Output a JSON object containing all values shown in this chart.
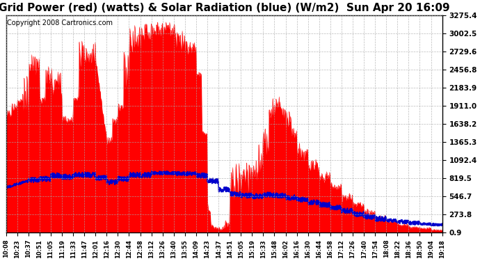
{
  "title": "Grid Power (red) (watts) & Solar Radiation (blue) (W/m2)  Sun Apr 20 16:09",
  "copyright": "Copyright 2008 Cartronics.com",
  "yticks": [
    0.9,
    273.8,
    546.7,
    819.5,
    1092.4,
    1365.3,
    1638.2,
    1911.0,
    2183.9,
    2456.8,
    2729.6,
    3002.5,
    3275.4
  ],
  "xtick_labels": [
    "10:08",
    "10:23",
    "10:37",
    "10:51",
    "11:05",
    "11:19",
    "11:33",
    "11:47",
    "12:01",
    "12:16",
    "12:30",
    "12:44",
    "12:58",
    "13:12",
    "13:26",
    "13:40",
    "13:55",
    "14:09",
    "14:23",
    "14:37",
    "14:51",
    "15:05",
    "15:19",
    "15:33",
    "15:48",
    "16:02",
    "16:16",
    "16:30",
    "16:44",
    "16:58",
    "17:12",
    "17:26",
    "17:40",
    "17:54",
    "18:08",
    "18:22",
    "18:36",
    "18:50",
    "19:04",
    "19:18"
  ],
  "ylim": [
    0.9,
    3275.4
  ],
  "background_color": "#ffffff",
  "plot_background": "#ffffff",
  "red_color": "#ff0000",
  "blue_color": "#0000cc",
  "grid_color": "#aaaaaa",
  "title_fontsize": 11,
  "copyright_fontsize": 7
}
